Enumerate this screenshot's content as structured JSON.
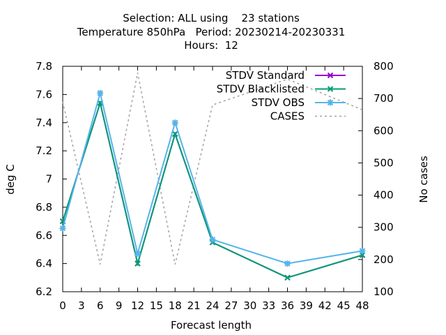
{
  "chart_data": {
    "type": "line",
    "title_lines": [
      "Selection: ALL using    23 stations",
      "Temperature 850hPa   Period: 20230214-20230331",
      "Hours:  12"
    ],
    "xlabel": "Forecast length",
    "ylabel": "deg C",
    "y2label": "No cases",
    "xlim": [
      0,
      48
    ],
    "ylim": [
      6.2,
      7.8
    ],
    "y2lim": [
      100,
      800
    ],
    "xticks": [
      "0",
      "3",
      "6",
      "9",
      "12",
      "15",
      "18",
      "21",
      "24",
      "27",
      "30",
      "33",
      "36",
      "39",
      "42",
      "45",
      "48"
    ],
    "yticks": [
      "6.2",
      "6.4",
      "6.6",
      "6.8",
      "7",
      "7.2",
      "7.4",
      "7.6",
      "7.8"
    ],
    "y2ticks": [
      "100",
      "200",
      "300",
      "400",
      "500",
      "600",
      "700",
      "800"
    ],
    "grid": false,
    "legend_position": "top-right",
    "series": [
      {
        "name": "STDV Standard",
        "axis": "y1",
        "color": "#9400d3",
        "marker": "x-cross",
        "x": [
          0,
          6,
          12,
          18,
          24,
          36,
          48
        ],
        "values": [
          6.7,
          7.54,
          6.4,
          7.32,
          6.55,
          6.3,
          6.46
        ]
      },
      {
        "name": "STDV Blacklisted",
        "axis": "y1",
        "color": "#009e73",
        "marker": "x-cross",
        "x": [
          0,
          6,
          12,
          18,
          24,
          36,
          48
        ],
        "values": [
          6.7,
          7.54,
          6.4,
          7.32,
          6.55,
          6.3,
          6.46
        ]
      },
      {
        "name": "STDV OBS",
        "axis": "y1",
        "color": "#56b4e9",
        "marker": "star",
        "x": [
          0,
          6,
          12,
          18,
          24,
          36,
          48
        ],
        "values": [
          6.65,
          7.61,
          6.47,
          7.4,
          6.57,
          6.4,
          6.49
        ]
      },
      {
        "name": "CASES",
        "axis": "y2",
        "color": "#a0a0a0",
        "marker": "none",
        "dashed": true,
        "x": [
          0,
          6,
          12,
          18,
          24,
          36,
          48
        ],
        "values": [
          690,
          185,
          780,
          185,
          680,
          760,
          665
        ]
      }
    ]
  }
}
